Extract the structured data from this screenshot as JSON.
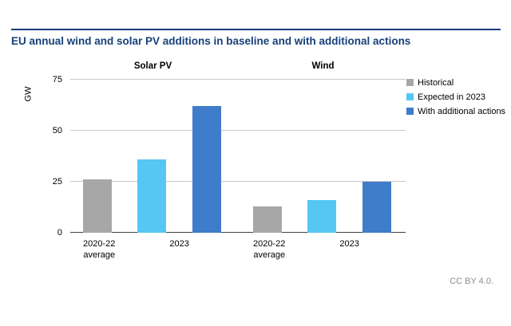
{
  "title": "EU annual wind and solar PV additions in baseline and with additional actions",
  "footer": "CC BY 4.0.",
  "colors": {
    "accent_navy": "#16407a",
    "historical_gray": "#a7a7a7",
    "expected_blue": "#55c7f2",
    "additional_blue": "#3f7cca"
  },
  "chart_data": {
    "type": "bar",
    "ylabel": "GW",
    "ylim": [
      0,
      75
    ],
    "yticks": [
      0,
      25,
      50,
      75
    ],
    "grid": true,
    "legend_position": "right",
    "panels": [
      {
        "title": "Solar PV",
        "categories": [
          "2020-22 average",
          "2023"
        ],
        "bars": [
          {
            "series": "Historical",
            "category": "2020-22 average",
            "value": 26
          },
          {
            "series": "Expected in 2023",
            "category": "2023",
            "value": 36
          },
          {
            "series": "With additional actions",
            "category": "2023",
            "value": 62
          }
        ]
      },
      {
        "title": "Wind",
        "categories": [
          "2020-22 average",
          "2023"
        ],
        "bars": [
          {
            "series": "Historical",
            "category": "2020-22 average",
            "value": 13
          },
          {
            "series": "Expected in 2023",
            "category": "2023",
            "value": 16
          },
          {
            "series": "With additional actions",
            "category": "2023",
            "value": 25
          }
        ]
      }
    ],
    "legend": [
      {
        "label": "Historical",
        "color": "#a7a7a7"
      },
      {
        "label": "Expected in 2023",
        "color": "#55c7f2"
      },
      {
        "label": "With additional actions",
        "color": "#3f7cca"
      }
    ]
  }
}
